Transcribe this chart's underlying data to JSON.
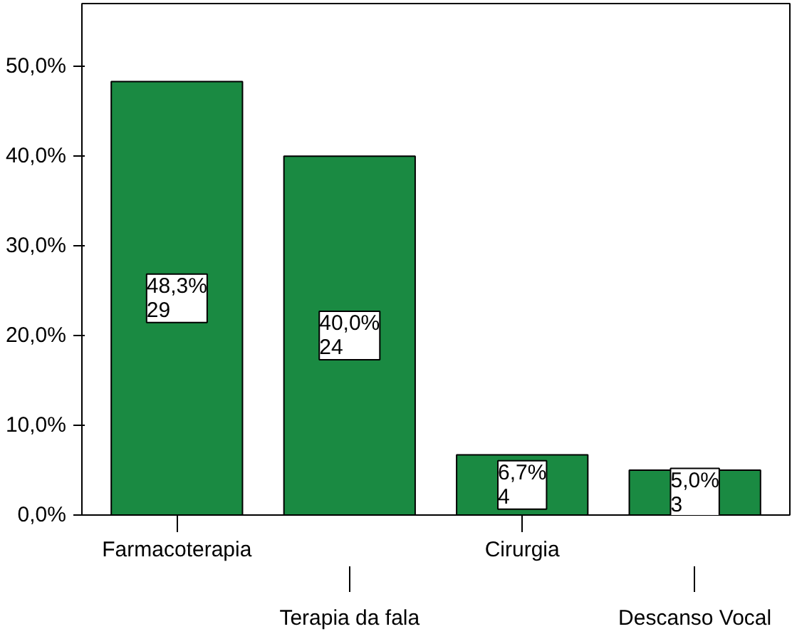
{
  "chart_data": {
    "type": "bar",
    "categories": [
      "Farmacoterapia",
      "Terapia da fala",
      "Cirurgia",
      "Descanso Vocal"
    ],
    "values": [
      48.3,
      40.0,
      6.7,
      5.0
    ],
    "value_labels": [
      "48,3%\n29",
      "40,0%\n24",
      "6,7%\n4",
      "5,0%\n3"
    ],
    "color": "#1a8a42",
    "ylim": [
      0,
      57
    ],
    "yticks": [
      {
        "value": 0,
        "label": "0,0%"
      },
      {
        "value": 10,
        "label": "10,0%"
      },
      {
        "value": 20,
        "label": "20,0%"
      },
      {
        "value": 30,
        "label": "30,0%"
      },
      {
        "value": 40,
        "label": "40,0%"
      },
      {
        "value": 50,
        "label": "50,0%"
      }
    ],
    "grid": false
  }
}
